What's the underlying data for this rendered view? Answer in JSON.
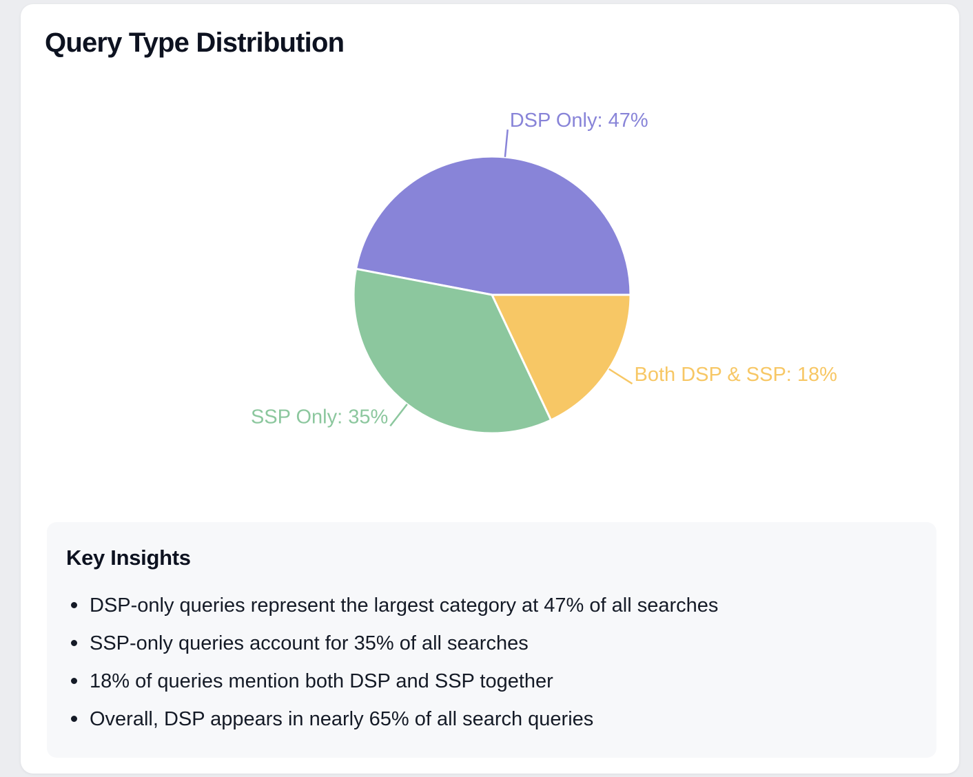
{
  "page": {
    "title": "Query Type Distribution"
  },
  "chart_data": {
    "type": "pie",
    "title": "Query Type Distribution",
    "unit": "percent",
    "start_angle_deg": 0,
    "sweep_direction": "counterclockwise",
    "legend": "none",
    "label_style": "outside labels with leader lines, colored to match slice",
    "slices": [
      {
        "label": "DSP Only",
        "value": 47,
        "display": "DSP Only: 47%",
        "color": "#8884d8"
      },
      {
        "label": "SSP Only",
        "value": 35,
        "display": "SSP Only: 35%",
        "color": "#8cc79e"
      },
      {
        "label": "Both DSP & SSP",
        "value": 18,
        "display": "Both DSP & SSP: 18%",
        "color": "#f7c765"
      }
    ]
  },
  "insights": {
    "heading": "Key Insights",
    "items": [
      "DSP-only queries represent the largest category at 47% of all searches",
      "SSP-only queries account for 35% of all searches",
      "18% of queries mention both DSP and SSP together",
      "Overall, DSP appears in nearly 65% of all search queries"
    ]
  }
}
